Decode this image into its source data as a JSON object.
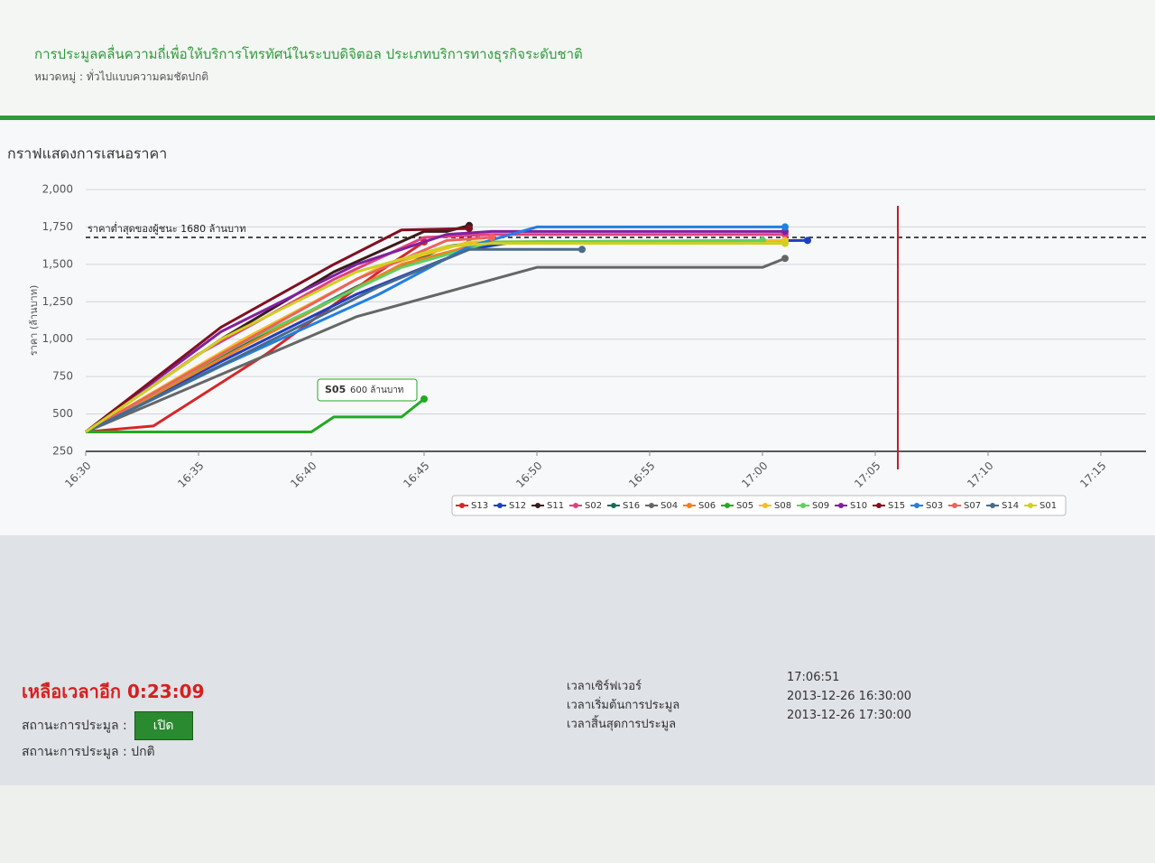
{
  "header": {
    "title": "การประมูลคลื่นความถี่เพื่อให้บริการโทรทัศน์ในระบบดิจิตอล ประเภทบริการทางธุรกิจระดับชาติ",
    "subtitle": "หมวดหมู่ : ทั่วไปแบบความคมชัดปกติ"
  },
  "chart_data": {
    "type": "line",
    "title": "กราฟแสดงการเสนอราคา",
    "y_label": "ราคา (ล้านบาท)",
    "ylim": [
      250,
      2000
    ],
    "yticks": [
      250,
      500,
      750,
      {
        "value": 1000,
        "label": "1,000"
      },
      {
        "value": 1250,
        "label": "1,250"
      },
      {
        "value": 1500,
        "label": "1,500"
      },
      {
        "value": 1750,
        "label": "1,750"
      },
      {
        "value": 2000,
        "label": "2,000"
      }
    ],
    "xlim": [
      "16:30",
      "17:17"
    ],
    "xticks": [
      "16:30",
      "16:35",
      "16:40",
      "16:45",
      "16:50",
      "16:55",
      "17:00",
      "17:05",
      "17:10",
      "17:15"
    ],
    "grid": true,
    "reference_line": {
      "value": 1680,
      "label": "ราคาต่ำสุดของผู้ชนะ 1680 ล้านบาท"
    },
    "current_time_line": "17:06",
    "tooltip": {
      "series": "S05",
      "text": "600 ล้านบาท"
    },
    "series": [
      {
        "name": "S13",
        "color": "#d62728",
        "x": [
          "16:30",
          "16:33",
          "16:38",
          "16:43",
          "16:45"
        ],
        "values": [
          380,
          420,
          900,
          1450,
          1650
        ]
      },
      {
        "name": "S12",
        "color": "#1f3fbf",
        "x": [
          "16:30",
          "16:36",
          "16:42",
          "16:47",
          "16:49",
          "17:02"
        ],
        "values": [
          380,
          850,
          1300,
          1600,
          1650,
          1660
        ]
      },
      {
        "name": "S11",
        "color": "#3a1a1a",
        "x": [
          "16:30",
          "16:36",
          "16:41",
          "16:45",
          "16:46",
          "16:47"
        ],
        "values": [
          380,
          1000,
          1450,
          1720,
          1720,
          1760
        ]
      },
      {
        "name": "S02",
        "color": "#e04080",
        "x": [
          "16:30",
          "16:35",
          "16:41",
          "16:45",
          "16:48",
          "17:01"
        ],
        "values": [
          380,
          900,
          1400,
          1680,
          1700,
          1700
        ]
      },
      {
        "name": "S16",
        "color": "#1a6b5a",
        "x": [
          "16:30",
          "16:36",
          "16:42",
          "16:46",
          "16:47"
        ],
        "values": [
          380,
          880,
          1350,
          1620,
          1640
        ]
      },
      {
        "name": "S04",
        "color": "#666666",
        "x": [
          "16:30",
          "16:35",
          "16:42",
          "16:50",
          "17:00",
          "17:01"
        ],
        "values": [
          380,
          700,
          1150,
          1480,
          1480,
          1540
        ]
      },
      {
        "name": "S06",
        "color": "#f08020",
        "x": [
          "16:30",
          "16:37",
          "16:44",
          "16:47"
        ],
        "values": [
          380,
          950,
          1500,
          1620
        ]
      },
      {
        "name": "S05",
        "color": "#22aa22",
        "x": [
          "16:30",
          "16:40",
          "16:41",
          "16:44",
          "16:45"
        ],
        "values": [
          380,
          380,
          480,
          480,
          600
        ]
      },
      {
        "name": "S08",
        "color": "#f0c020",
        "x": [
          "16:30",
          "16:37",
          "16:43",
          "16:47",
          "17:01"
        ],
        "values": [
          380,
          1000,
          1480,
          1650,
          1660
        ]
      },
      {
        "name": "S09",
        "color": "#60d060",
        "x": [
          "16:30",
          "16:37",
          "16:44",
          "16:48",
          "17:00"
        ],
        "values": [
          380,
          980,
          1480,
          1650,
          1660
        ]
      },
      {
        "name": "S10",
        "color": "#8020a0",
        "x": [
          "16:30",
          "16:36",
          "16:42",
          "16:46",
          "16:48",
          "17:01"
        ],
        "values": [
          380,
          1050,
          1500,
          1700,
          1720,
          1720
        ]
      },
      {
        "name": "S15",
        "color": "#801020",
        "x": [
          "16:30",
          "16:36",
          "16:41",
          "16:44",
          "16:47"
        ],
        "values": [
          380,
          1080,
          1500,
          1730,
          1740
        ]
      },
      {
        "name": "S03",
        "color": "#2080e0",
        "x": [
          "16:30",
          "16:36",
          "16:43",
          "16:47",
          "16:50",
          "17:01"
        ],
        "values": [
          380,
          820,
          1300,
          1620,
          1750,
          1750
        ]
      },
      {
        "name": "S07",
        "color": "#f06060",
        "x": [
          "16:30",
          "16:36",
          "16:42",
          "16:46",
          "16:48"
        ],
        "values": [
          380,
          900,
          1400,
          1660,
          1680
        ]
      },
      {
        "name": "S14",
        "color": "#4a6a8a",
        "x": [
          "16:30",
          "16:37",
          "16:43",
          "16:47",
          "16:52"
        ],
        "values": [
          380,
          900,
          1350,
          1600,
          1600
        ]
      },
      {
        "name": "S01",
        "color": "#d0d020",
        "x": [
          "16:30",
          "16:36",
          "16:42",
          "16:46",
          "16:48",
          "17:01"
        ],
        "values": [
          380,
          1000,
          1450,
          1620,
          1640,
          1640
        ]
      }
    ]
  },
  "status": {
    "remaining_label": "เหลือเวลาอีก",
    "remaining": "0:23:09",
    "state_label": "สถานะการประมูล :",
    "state_button": "เปิด",
    "mode": "สถานะการประมูล : ปกติ",
    "server_time_label": "เวลาเซิร์ฟเวอร์",
    "server_time": "17:06:51",
    "start_label": "เวลาเริ่มต้นการประมูล",
    "start": "2013-12-26 16:30:00",
    "end_label": "เวลาสิ้นสุดการประมูล",
    "end": "2013-12-26 17:30:00"
  }
}
